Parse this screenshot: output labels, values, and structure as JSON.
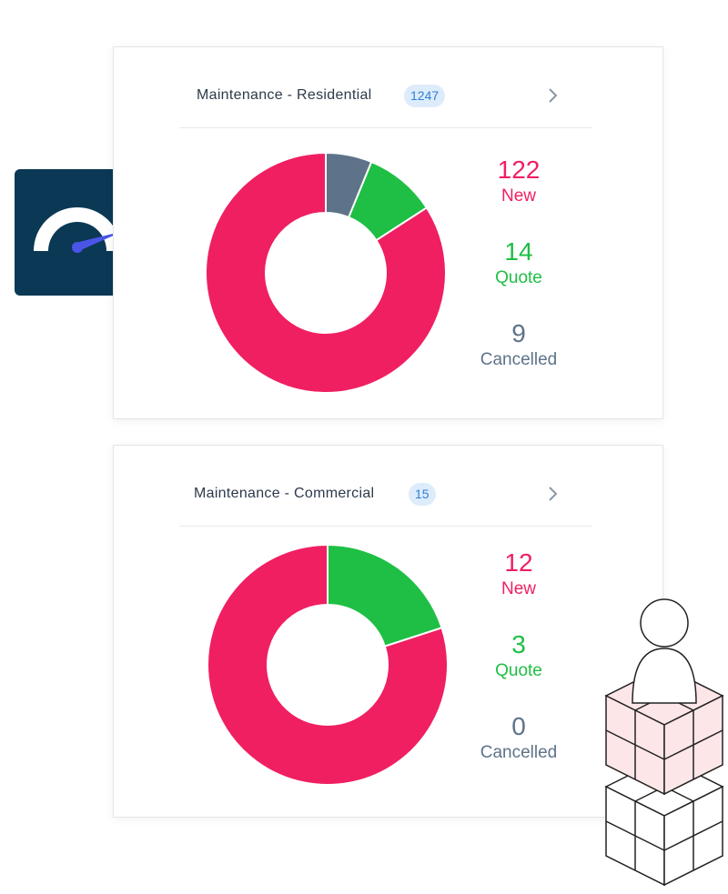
{
  "colors": {
    "new": "#f01f62",
    "quote": "#1fbf45",
    "cancelled": "#5e7389",
    "badge_bg": "#ddecfb",
    "badge_text": "#2f80d8",
    "gauge_tile": "#0b3955",
    "gauge_needle": "#4a55e8"
  },
  "icons": {
    "gauge": "speedometer-gauge-icon",
    "chevron": "chevron-right-icon",
    "stack": "person-on-cube-stack-icon"
  },
  "chart_data": [
    {
      "type": "pie",
      "title": "Maintenance - Residential",
      "badge": "1247",
      "series": [
        {
          "name": "New",
          "label": "New",
          "value": 122,
          "display": "122",
          "color": "#f01f62"
        },
        {
          "name": "Quote",
          "label": "Quote",
          "value": 14,
          "display": "14",
          "color": "#1fbf45"
        },
        {
          "name": "Cancelled",
          "label": "Cancelled",
          "value": 9,
          "display": "9",
          "color": "#5e7389"
        }
      ]
    },
    {
      "type": "pie",
      "title": "Maintenance - Commercial",
      "badge": "15",
      "series": [
        {
          "name": "New",
          "label": "New",
          "value": 12,
          "display": "12",
          "color": "#f01f62"
        },
        {
          "name": "Quote",
          "label": "Quote",
          "value": 3,
          "display": "3",
          "color": "#1fbf45"
        },
        {
          "name": "Cancelled",
          "label": "Cancelled",
          "value": 0,
          "display": "0",
          "color": "#5e7389"
        }
      ]
    }
  ]
}
